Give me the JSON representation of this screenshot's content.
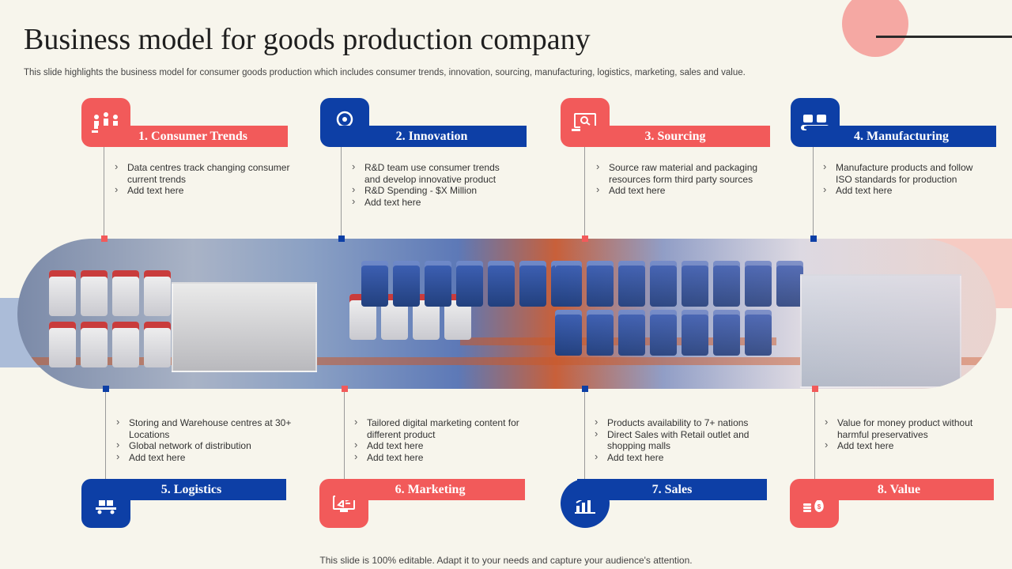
{
  "title": "Business model for goods production company",
  "subtitle": "This slide highlights the business model for consumer goods production which includes consumer trends, innovation, sourcing, manufacturing, logistics, marketing, sales and value.",
  "footer": "This slide is 100% editable. Adapt it to your needs and capture your audience's attention.",
  "colors": {
    "red": "#f25a5a",
    "blue": "#0d3fa6",
    "background": "#f7f5ec"
  },
  "top_steps": [
    {
      "label": "1. Consumer Trends",
      "icon": "people-group-icon",
      "color": "red",
      "points": [
        "Data centres track changing consumer current trends",
        "Add text here"
      ]
    },
    {
      "label": "2. Innovation",
      "icon": "lightbulb-icon",
      "color": "blue",
      "points": [
        "R&D team use consumer trends and develop innovative product",
        "R&D Spending - $X Million",
        "Add text here"
      ]
    },
    {
      "label": "3. Sourcing",
      "icon": "laptop-search-icon",
      "color": "red",
      "points": [
        "Source raw material and packaging resources form third party sources",
        "Add text here"
      ]
    },
    {
      "label": "4. Manufacturing",
      "icon": "conveyor-belt-icon",
      "color": "blue",
      "points": [
        "Manufacture products and follow ISO standards for production",
        "Add text here"
      ]
    }
  ],
  "bottom_steps": [
    {
      "label": "5. Logistics",
      "icon": "forklift-boxes-icon",
      "color": "blue",
      "points": [
        "Storing and Warehouse centres at 30+ Locations",
        "Global network of distribution",
        "Add text here"
      ]
    },
    {
      "label": "6. Marketing",
      "icon": "megaphone-icon",
      "color": "red",
      "points": [
        "Tailored digital marketing content for different product",
        "Add text here",
        "Add text here"
      ]
    },
    {
      "label": "7. Sales",
      "icon": "bar-chart-growth-icon",
      "color": "blue",
      "points": [
        "Products availability to 7+ nations",
        "Direct Sales with Retail outlet and shopping malls",
        "Add text here"
      ]
    },
    {
      "label": "8. Value",
      "icon": "money-bag-icon",
      "color": "red",
      "points": [
        "Value for money product without harmful preservatives",
        "Add text here"
      ]
    }
  ]
}
